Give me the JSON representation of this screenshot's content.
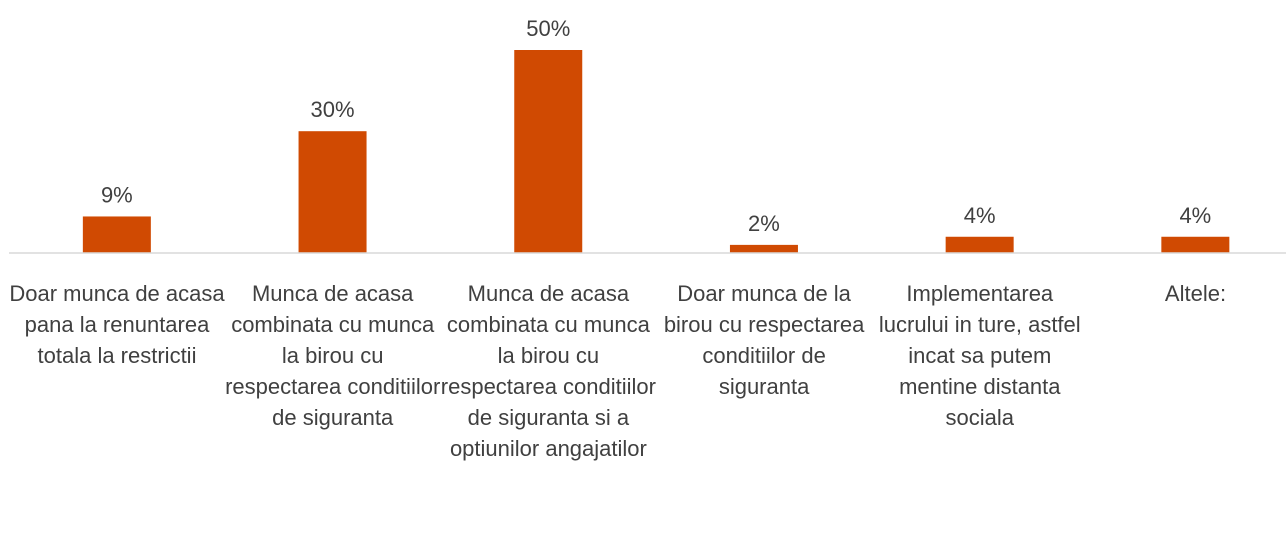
{
  "chart_data": {
    "type": "bar",
    "categories": [
      "Doar munca de acasa pana la renuntarea totala la restrictii",
      "Munca de acasa combinata cu munca la birou cu respectarea conditiilor de siguranta",
      "Munca de acasa combinata cu munca la birou cu respectarea conditiilor de siguranta si a optiunilor angajatilor",
      "Doar munca de la birou cu respectarea conditiilor de siguranta",
      "Implementarea lucrului in ture, astfel incat sa putem mentine distanta sociala",
      "Altele:"
    ],
    "values": [
      9,
      30,
      50,
      2,
      4,
      4
    ],
    "value_labels": [
      "9%",
      "30%",
      "50%",
      "2%",
      "4%",
      "4%"
    ],
    "color": "#d04a02",
    "ylim": [
      0,
      50
    ]
  }
}
